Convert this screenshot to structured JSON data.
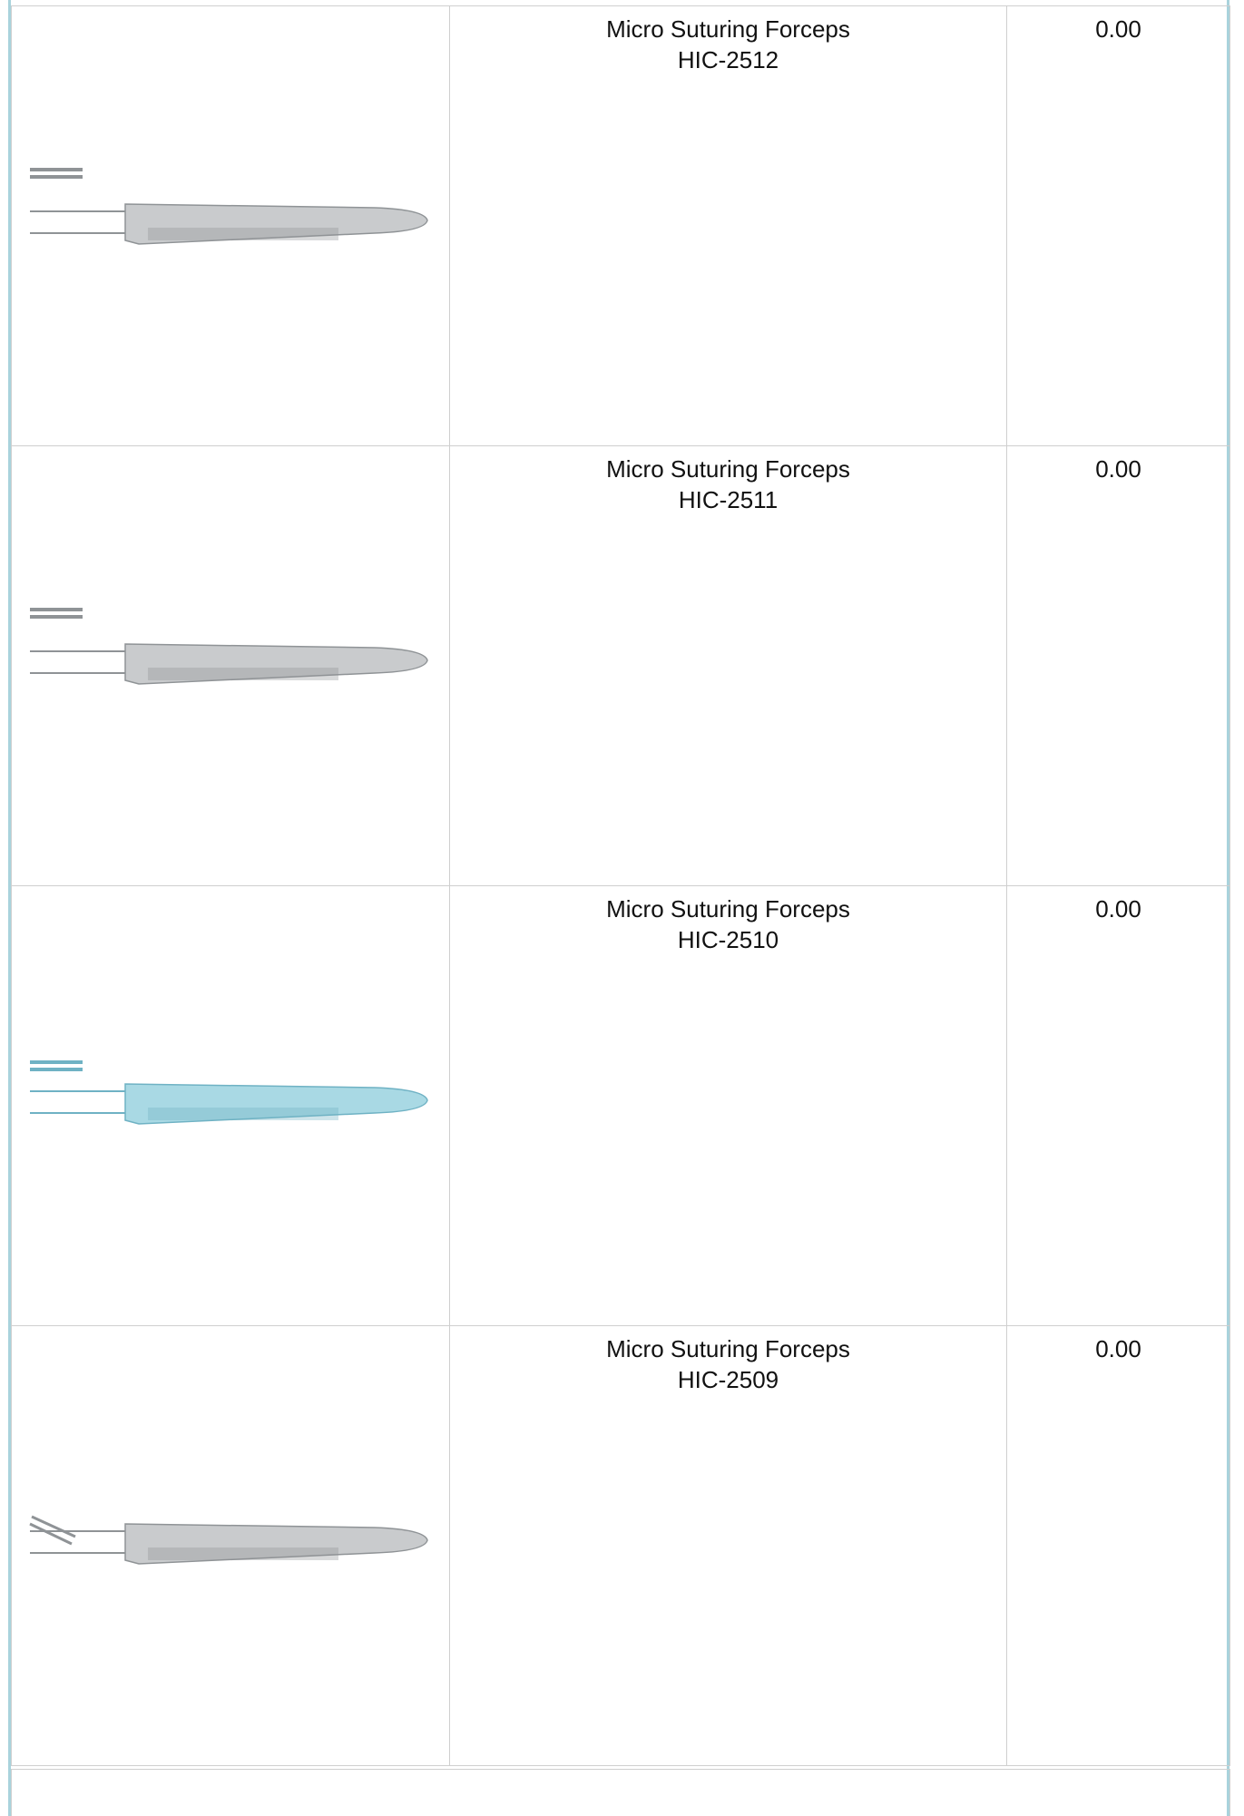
{
  "table": {
    "rows": [
      {
        "name": "Micro Suturing Forceps",
        "code": "HIC-2512",
        "price": "0.00"
      },
      {
        "name": "Micro Suturing Forceps",
        "code": "HIC-2511",
        "price": "0.00"
      },
      {
        "name": "Micro Suturing Forceps",
        "code": "HIC-2510",
        "price": "0.00"
      },
      {
        "name": "Micro Suturing Forceps",
        "code": "HIC-2509",
        "price": "0.00"
      }
    ]
  }
}
